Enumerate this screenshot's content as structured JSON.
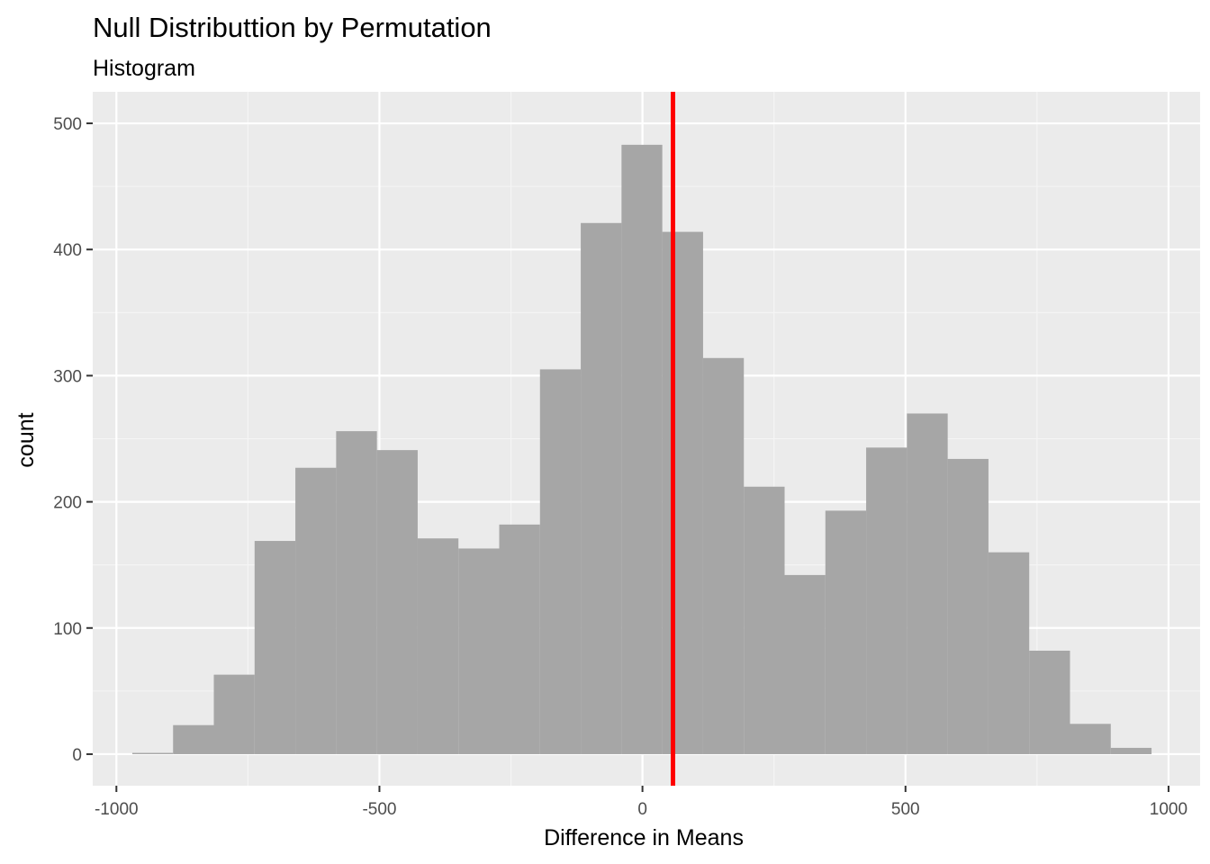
{
  "chart_data": {
    "type": "bar",
    "title": "Null Distributtion by Permutation",
    "subtitle": "Histogram",
    "xlabel": "Difference in Means",
    "ylabel": "count",
    "xlim": [
      -1045,
      1060
    ],
    "ylim": [
      -25,
      525
    ],
    "x_ticks": [
      -1000,
      -500,
      0,
      500,
      1000
    ],
    "x_tick_labels": [
      "-1000",
      "-500",
      "0",
      "500",
      "1000"
    ],
    "y_ticks": [
      0,
      100,
      200,
      300,
      400,
      500
    ],
    "y_tick_labels": [
      "0",
      "100",
      "200",
      "300",
      "400",
      "500"
    ],
    "bin_edges": [
      -969.8,
      -892.3,
      -814.8,
      -737.3,
      -659.8,
      -582.3,
      -504.8,
      -427.3,
      -349.8,
      -272.3,
      -194.8,
      -117.3,
      -39.8,
      37.7,
      115.2,
      192.7,
      270.2,
      347.7,
      425.2,
      502.7,
      580.2,
      657.7,
      735.2,
      812.7,
      890.2,
      967.7
    ],
    "counts": [
      1,
      23,
      63,
      169,
      227,
      256,
      241,
      171,
      163,
      182,
      305,
      421,
      483,
      414,
      314,
      212,
      142,
      193,
      243,
      270,
      234,
      160,
      82,
      24,
      5
    ],
    "reference_line_x": 58,
    "colors": {
      "panel_background": "#ebebeb",
      "grid_major": "#ffffff",
      "grid_minor": "#f5f5f5",
      "bar_fill": "#a3a3a3",
      "reference_line": "#ff0000"
    },
    "grid": true,
    "legend": "none"
  }
}
